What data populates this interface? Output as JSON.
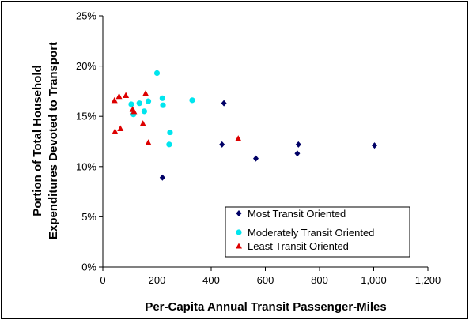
{
  "chart_data": {
    "type": "scatter",
    "xlabel": "Per-Capita Annual Transit Passenger-Miles",
    "ylabel_lines": [
      "Portion of Total Household",
      "Expenditures Devoted to Transport"
    ],
    "xlim": [
      0,
      1200
    ],
    "ylim": [
      0,
      0.25
    ],
    "x_ticks": [
      0,
      200,
      400,
      600,
      800,
      1000,
      1200
    ],
    "x_tick_labels": [
      "0",
      "200",
      "400",
      "600",
      "800",
      "1,000",
      "1,200"
    ],
    "y_ticks": [
      0,
      0.05,
      0.1,
      0.15,
      0.2,
      0.25
    ],
    "y_tick_labels": [
      "0%",
      "5%",
      "10%",
      "15%",
      "20%",
      "25%"
    ],
    "grid": false,
    "legend_position": "bottom-right",
    "series": [
      {
        "name": "Most Transit Oriented",
        "marker": "diamond",
        "color": "#000066",
        "points": [
          [
            220,
            0.089
          ],
          [
            440,
            0.122
          ],
          [
            447,
            0.163
          ],
          [
            565,
            0.108
          ],
          [
            718,
            0.113
          ],
          [
            722,
            0.122
          ],
          [
            1003,
            0.121
          ]
        ]
      },
      {
        "name": "Moderately Transit Oriented",
        "marker": "circle",
        "color": "#00e5ee",
        "points": [
          [
            105,
            0.162
          ],
          [
            113,
            0.152
          ],
          [
            135,
            0.163
          ],
          [
            153,
            0.155
          ],
          [
            168,
            0.165
          ],
          [
            200,
            0.193
          ],
          [
            220,
            0.168
          ],
          [
            222,
            0.161
          ],
          [
            245,
            0.122
          ],
          [
            248,
            0.134
          ],
          [
            330,
            0.166
          ]
        ]
      },
      {
        "name": "Least Transit Oriented",
        "marker": "triangle",
        "color": "#dd0000",
        "points": [
          [
            43,
            0.166
          ],
          [
            45,
            0.135
          ],
          [
            60,
            0.17
          ],
          [
            65,
            0.138
          ],
          [
            85,
            0.171
          ],
          [
            110,
            0.157
          ],
          [
            115,
            0.155
          ],
          [
            148,
            0.143
          ],
          [
            158,
            0.173
          ],
          [
            168,
            0.124
          ],
          [
            500,
            0.128
          ]
        ]
      }
    ]
  }
}
